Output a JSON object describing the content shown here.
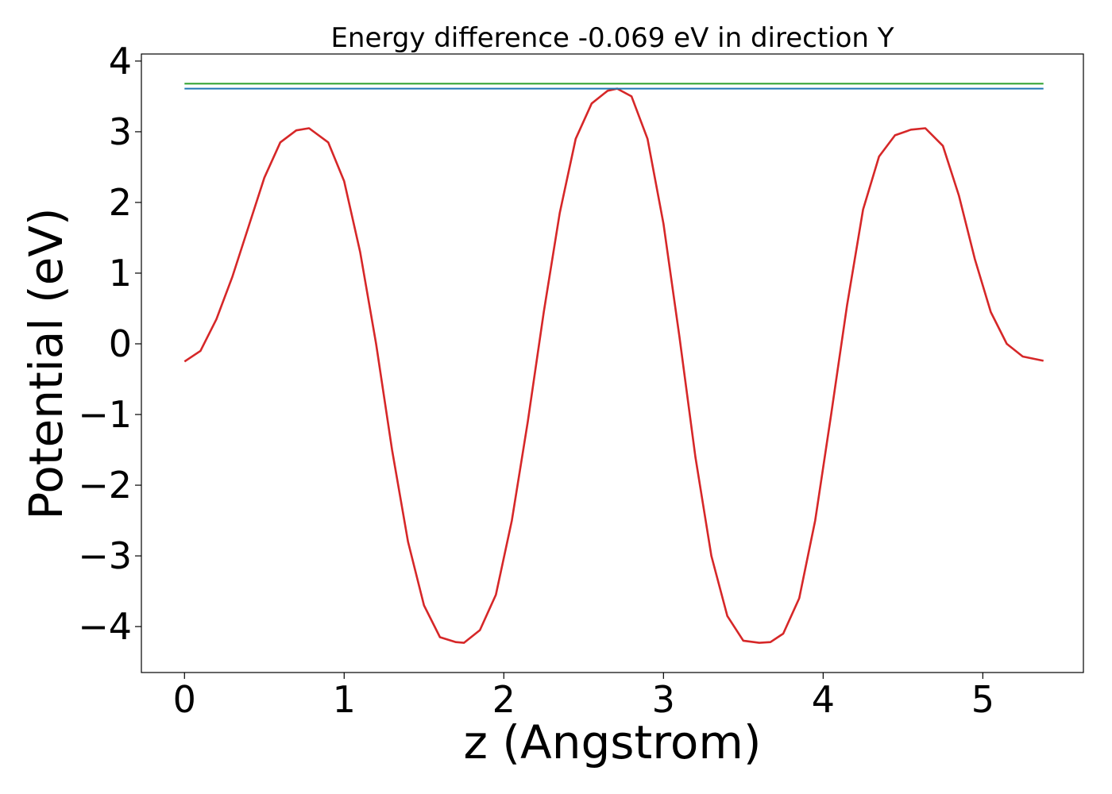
{
  "chart_data": {
    "type": "line",
    "title": "Energy difference -0.069 eV in direction Y",
    "xlabel": "z (Angstrom)",
    "ylabel": "Potential (eV)",
    "xlim": [
      -0.27,
      5.63
    ],
    "ylim": [
      -4.65,
      4.1
    ],
    "xticks": [
      0,
      1,
      2,
      3,
      4,
      5
    ],
    "xtick_labels": [
      "0",
      "1",
      "2",
      "3",
      "4",
      "5"
    ],
    "yticks": [
      -4,
      -3,
      -2,
      -1,
      0,
      1,
      2,
      3,
      4
    ],
    "ytick_labels": [
      "−4",
      "−3",
      "−2",
      "−1",
      "0",
      "1",
      "2",
      "3",
      "4"
    ],
    "grid": false,
    "series": [
      {
        "color": "#d62728",
        "x": [
          0.0,
          0.1,
          0.2,
          0.3,
          0.4,
          0.5,
          0.6,
          0.7,
          0.78,
          0.9,
          1.0,
          1.1,
          1.2,
          1.3,
          1.4,
          1.5,
          1.6,
          1.7,
          1.75,
          1.85,
          1.95,
          2.05,
          2.15,
          2.25,
          2.35,
          2.45,
          2.55,
          2.65,
          2.71,
          2.8,
          2.9,
          3.0,
          3.1,
          3.2,
          3.3,
          3.4,
          3.5,
          3.6,
          3.67,
          3.75,
          3.85,
          3.95,
          4.05,
          4.15,
          4.25,
          4.35,
          4.45,
          4.55,
          4.64,
          4.75,
          4.85,
          4.95,
          5.05,
          5.15,
          5.25,
          5.38
        ],
        "y": [
          -0.25,
          -0.1,
          0.35,
          0.95,
          1.65,
          2.35,
          2.85,
          3.02,
          3.05,
          2.85,
          2.3,
          1.3,
          0.0,
          -1.5,
          -2.8,
          -3.7,
          -4.15,
          -4.22,
          -4.23,
          -4.05,
          -3.55,
          -2.5,
          -1.1,
          0.45,
          1.85,
          2.9,
          3.4,
          3.58,
          3.61,
          3.5,
          2.9,
          1.7,
          0.1,
          -1.6,
          -3.0,
          -3.85,
          -4.2,
          -4.23,
          -4.22,
          -4.1,
          -3.6,
          -2.5,
          -1.0,
          0.55,
          1.9,
          2.65,
          2.95,
          3.03,
          3.05,
          2.8,
          2.1,
          1.2,
          0.45,
          0.0,
          -0.18,
          -0.24
        ]
      },
      {
        "color": "#2ca02c",
        "x": [
          0.0,
          5.38
        ],
        "y": [
          3.68,
          3.68
        ]
      },
      {
        "color": "#1f77b4",
        "x": [
          0.0,
          5.38
        ],
        "y": [
          3.61,
          3.61
        ]
      }
    ]
  }
}
